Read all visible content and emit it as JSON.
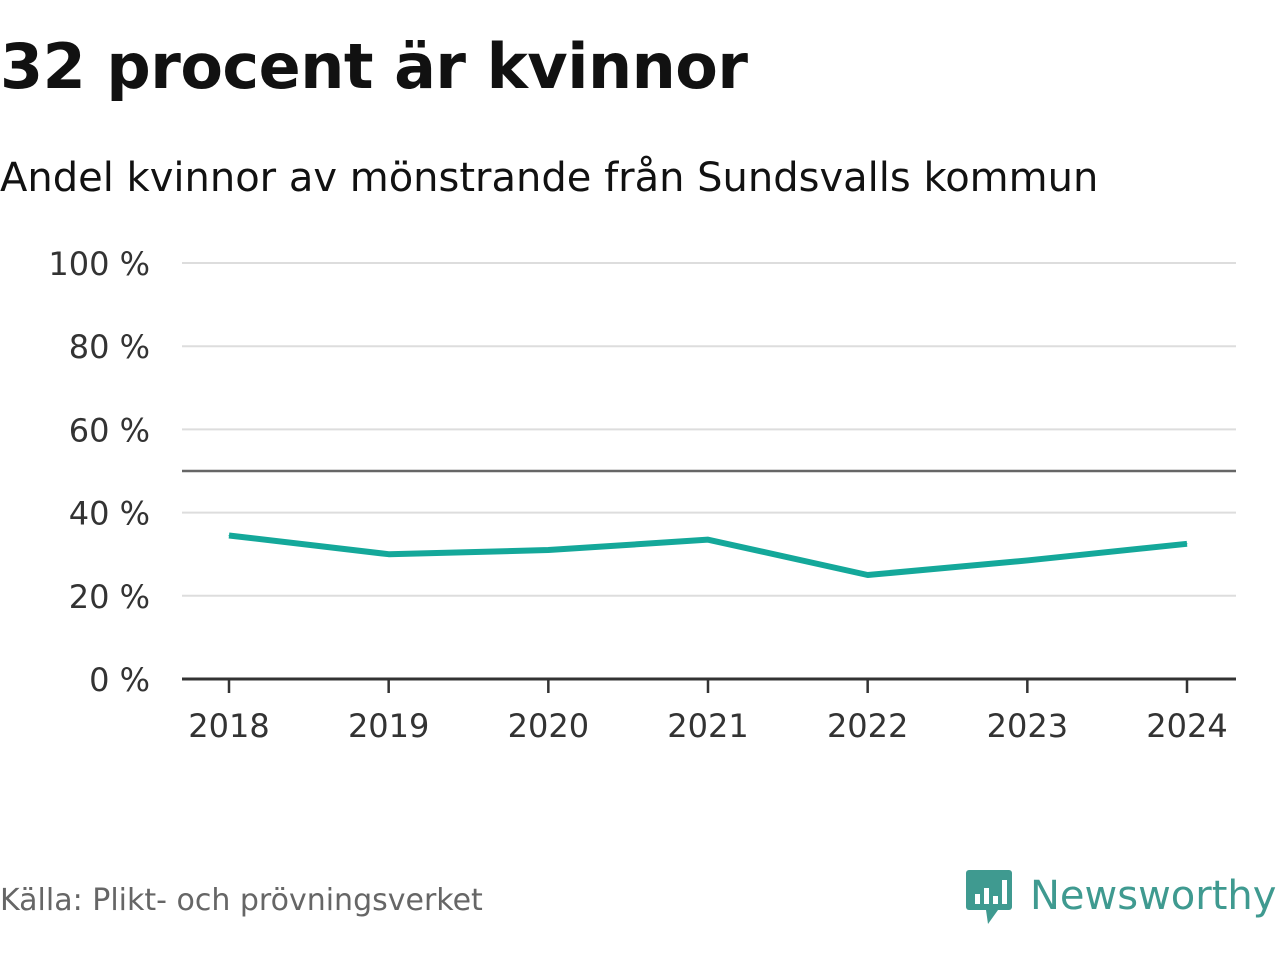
{
  "header": {
    "title": "32 procent är kvinnor",
    "subtitle": "Andel kvinnor av mönstrande från Sundsvalls kommun"
  },
  "footer": {
    "source": "Källa: Plikt- och prövningsverket",
    "brand": "Newsworthy",
    "brand_icon": "newsworthy-logo-icon"
  },
  "colors": {
    "line": "#14a89a",
    "grid": "#dddddd",
    "reference": "#666666",
    "axis": "#333333",
    "brand": "#3f9a90"
  },
  "chart_data": {
    "type": "line",
    "title": "32 procent är kvinnor",
    "subtitle": "Andel kvinnor av mönstrande från Sundsvalls kommun",
    "categories": [
      "2018",
      "2019",
      "2020",
      "2021",
      "2022",
      "2023",
      "2024"
    ],
    "series": [
      {
        "name": "Andel kvinnor",
        "values": [
          34.5,
          30,
          31,
          33.5,
          25,
          28.5,
          32.5
        ]
      }
    ],
    "reference_line": 50,
    "ylim": [
      0,
      100
    ],
    "yticks": [
      0,
      20,
      40,
      60,
      80,
      100
    ],
    "ytick_labels": [
      "0 %",
      "20 %",
      "40 %",
      "60 %",
      "80 %",
      "100 %"
    ],
    "xlabel": "",
    "ylabel": "",
    "grid": true
  }
}
